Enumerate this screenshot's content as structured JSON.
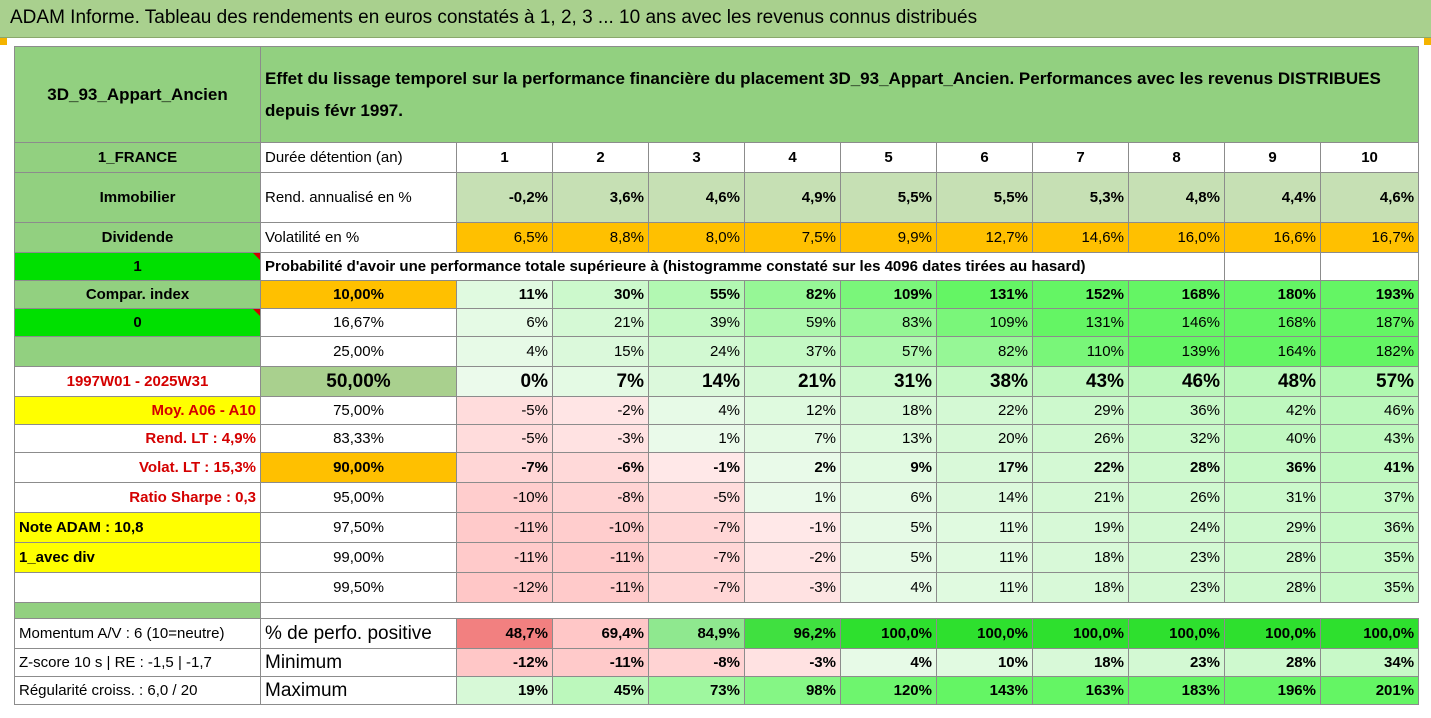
{
  "title": "ADAM Informe. Tableau des rendements en euros constatés à 1, 2, 3 ... 10 ans avec les revenus connus distribués",
  "header": {
    "name": "3D_93_Appart_Ancien",
    "description": "Effet du lissage temporel sur la performance financière du placement 3D_93_Appart_Ancien. Performances avec les revenus DISTRIBUES depuis févr 1997."
  },
  "left": {
    "country": "1_FRANCE",
    "category": "Immobilier",
    "dividend": "Dividende",
    "one": "1",
    "compar": "Compar. index",
    "zero": "0",
    "period": "1997W01 - 2025W31",
    "moy": "Moy. A06 - A10",
    "rend_lt": "Rend. LT :   4,9%",
    "volat_lt": "Volat. LT :   15,3%",
    "sharpe": "Ratio Sharpe :   0,3",
    "note": "Note ADAM : 10,8",
    "avec_div": "1_avec div",
    "momentum": "Momentum A/V : 6 (10=neutre)",
    "zscore": "Z-score 10 s  |  RE : -1,5  |  -1,7",
    "regularite": "Régularité croiss. : 6,0 / 20"
  },
  "rows": {
    "duree": {
      "label": "Durée détention (an)",
      "values": [
        "1",
        "2",
        "3",
        "4",
        "5",
        "6",
        "7",
        "8",
        "9",
        "10"
      ]
    },
    "rend": {
      "label": "Rend. annualisé en %",
      "values": [
        "-0,2%",
        "3,6%",
        "4,6%",
        "4,9%",
        "5,5%",
        "5,5%",
        "5,3%",
        "4,8%",
        "4,4%",
        "4,6%"
      ]
    },
    "vol": {
      "label": "Volatilité en %",
      "values": [
        "6,5%",
        "8,8%",
        "8,0%",
        "7,5%",
        "9,9%",
        "12,7%",
        "14,6%",
        "16,0%",
        "16,6%",
        "16,7%"
      ]
    },
    "prob_title": "Probabilité d'avoir une performance totale supérieure à (histogramme constaté sur les 4096 dates tirées au hasard)",
    "pct": [
      {
        "label": "10,00%",
        "values": [
          "11%",
          "30%",
          "55%",
          "82%",
          "109%",
          "131%",
          "152%",
          "168%",
          "180%",
          "193%"
        ],
        "bold": true
      },
      {
        "label": "16,67%",
        "values": [
          "6%",
          "21%",
          "39%",
          "59%",
          "83%",
          "109%",
          "131%",
          "146%",
          "168%",
          "187%"
        ]
      },
      {
        "label": "25,00%",
        "values": [
          "4%",
          "15%",
          "24%",
          "37%",
          "57%",
          "82%",
          "110%",
          "139%",
          "164%",
          "182%"
        ]
      },
      {
        "label": "50,00%",
        "values": [
          "0%",
          "7%",
          "14%",
          "21%",
          "31%",
          "38%",
          "43%",
          "46%",
          "48%",
          "57%"
        ],
        "bold": true,
        "big": true
      },
      {
        "label": "75,00%",
        "values": [
          "-5%",
          "-2%",
          "4%",
          "12%",
          "18%",
          "22%",
          "29%",
          "36%",
          "42%",
          "46%"
        ]
      },
      {
        "label": "83,33%",
        "values": [
          "-5%",
          "-3%",
          "1%",
          "7%",
          "13%",
          "20%",
          "26%",
          "32%",
          "40%",
          "43%"
        ]
      },
      {
        "label": "90,00%",
        "values": [
          "-7%",
          "-6%",
          "-1%",
          "2%",
          "9%",
          "17%",
          "22%",
          "28%",
          "36%",
          "41%"
        ],
        "bold": true
      },
      {
        "label": "95,00%",
        "values": [
          "-10%",
          "-8%",
          "-5%",
          "1%",
          "6%",
          "14%",
          "21%",
          "26%",
          "31%",
          "37%"
        ]
      },
      {
        "label": "97,50%",
        "values": [
          "-11%",
          "-10%",
          "-7%",
          "-1%",
          "5%",
          "11%",
          "19%",
          "24%",
          "29%",
          "36%"
        ]
      },
      {
        "label": "99,00%",
        "values": [
          "-11%",
          "-11%",
          "-7%",
          "-2%",
          "5%",
          "11%",
          "18%",
          "23%",
          "28%",
          "35%"
        ]
      },
      {
        "label": "99,50%",
        "values": [
          "-12%",
          "-11%",
          "-7%",
          "-3%",
          "4%",
          "11%",
          "18%",
          "23%",
          "28%",
          "35%"
        ]
      }
    ],
    "positive": {
      "label": "% de perfo. positive",
      "values": [
        "48,7%",
        "69,4%",
        "84,9%",
        "96,2%",
        "100,0%",
        "100,0%",
        "100,0%",
        "100,0%",
        "100,0%",
        "100,0%"
      ]
    },
    "minimum": {
      "label": "Minimum",
      "values": [
        "-12%",
        "-11%",
        "-8%",
        "-3%",
        "4%",
        "10%",
        "18%",
        "23%",
        "28%",
        "34%"
      ]
    },
    "maximum": {
      "label": "Maximum",
      "values": [
        "19%",
        "45%",
        "73%",
        "98%",
        "120%",
        "143%",
        "163%",
        "183%",
        "196%",
        "201%"
      ]
    }
  },
  "colors": {
    "header_green": "#92d080",
    "title_green": "#a9d08e",
    "orange": "#ffc000",
    "yellow": "#ffff00",
    "lime": "#00e000",
    "red_text": "#d40000"
  }
}
